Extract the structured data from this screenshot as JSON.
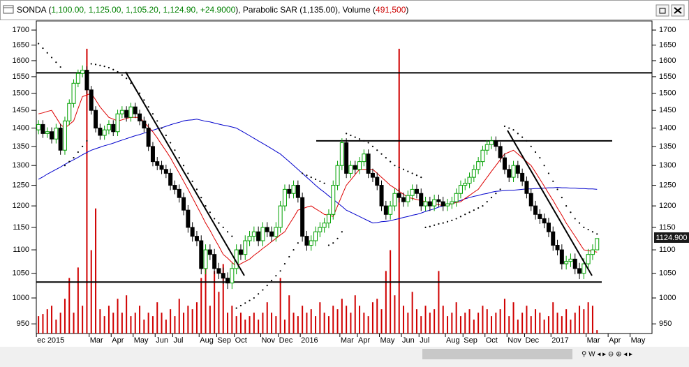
{
  "ui": {
    "header": [
      "SONDA (",
      "1,100.00, 1,125.00, 1,105.20, 1,124.90, +24.9000",
      "), Parabolic SAR (",
      "1,135.00",
      "), Volume (",
      "491,500",
      ")"
    ],
    "price_tag": "1124.900"
  },
  "chart_data": {
    "type": "candlestick",
    "log_scale": true,
    "up_color": "#00a000",
    "down_color": "#000000",
    "ylim": [
      932,
      1731
    ],
    "yticks": [
      950,
      1000,
      1050,
      1100,
      1150,
      1200,
      1250,
      1300,
      1350,
      1400,
      1450,
      1500,
      1550,
      1600,
      1650,
      1700
    ],
    "y2lim": [
      0,
      45000000
    ],
    "levels": [
      1562,
      1365,
      1032
    ],
    "categories": [
      "ec 2015",
      null,
      null,
      null,
      null,
      null,
      null,
      null,
      null,
      null,
      null,
      null,
      "Mar",
      null,
      null,
      null,
      null,
      "Apr",
      null,
      null,
      null,
      null,
      "May",
      null,
      null,
      null,
      null,
      "Jun",
      null,
      null,
      null,
      "Jul",
      null,
      null,
      null,
      null,
      null,
      "Aug",
      null,
      null,
      null,
      "Sep",
      null,
      null,
      null,
      "Oct",
      null,
      null,
      null,
      null,
      null,
      "Nov",
      null,
      null,
      null,
      "Dec",
      null,
      null,
      null,
      null,
      "2016",
      null,
      null,
      null,
      null,
      null,
      null,
      null,
      null,
      "Mar",
      null,
      null,
      null,
      "Apr",
      null,
      null,
      null,
      null,
      "May",
      null,
      null,
      null,
      null,
      "Jun",
      null,
      null,
      null,
      "Jul",
      null,
      null,
      null,
      null,
      null,
      "Aug",
      null,
      null,
      null,
      "Sep",
      null,
      null,
      null,
      null,
      "Oct",
      null,
      null,
      null,
      null,
      "Nov",
      null,
      null,
      null,
      "Dec",
      null,
      null,
      null,
      null,
      null,
      "2017",
      null,
      null,
      null,
      null,
      null,
      null,
      null,
      "Mar",
      null,
      null,
      null,
      null,
      "Apr",
      null,
      null,
      null,
      null,
      "May",
      null,
      null,
      null,
      null
    ],
    "open": [
      1395,
      1410,
      1385,
      1390,
      1370,
      1400,
      1340,
      1420,
      1470,
      1530,
      1560,
      1570,
      1510,
      1450,
      1400,
      1380,
      1395,
      1410,
      1390,
      1440,
      1450,
      1430,
      1460,
      1440,
      1420,
      1400,
      1350,
      1310,
      1300,
      1290,
      1280,
      1250,
      1240,
      1220,
      1190,
      1150,
      1130,
      1120,
      1060,
      1100,
      1090,
      1060,
      1050,
      1040,
      1030,
      1060,
      1100,
      1090,
      1120,
      1130,
      1140,
      1120,
      1150,
      1140,
      1130,
      1150,
      1200,
      1240,
      1230,
      1250,
      1220,
      1130,
      1110,
      1120,
      1140,
      1150,
      1160,
      1180,
      1250,
      1300,
      1360,
      1280,
      1300,
      1290,
      1310,
      1330,
      1280,
      1270,
      1250,
      1200,
      1180,
      1200,
      1230,
      1220,
      1210,
      1225,
      1240,
      1230,
      1200,
      1210,
      1200,
      1215,
      1210,
      1200,
      1205,
      1210,
      1230,
      1250,
      1255,
      1270,
      1290,
      1310,
      1340,
      1355,
      1365,
      1350,
      1320,
      1290,
      1270,
      1300,
      1280,
      1260,
      1230,
      1200,
      1180,
      1170,
      1160,
      1140,
      1110,
      1100,
      1070,
      1075,
      1080,
      1060,
      1050,
      1070,
      1090,
      1100,
      null,
      null,
      null,
      null,
      null,
      null,
      null,
      null,
      null,
      null,
      null,
      null
    ],
    "high": [
      1422,
      1422,
      1402,
      1402,
      1412,
      1412,
      1432,
      1482,
      1542,
      1572,
      1585,
      1582,
      1522,
      1462,
      1412,
      1407,
      1422,
      1422,
      1452,
      1462,
      1462,
      1472,
      1472,
      1452,
      1432,
      1412,
      1362,
      1322,
      1312,
      1302,
      1292,
      1262,
      1252,
      1232,
      1202,
      1162,
      1142,
      1132,
      1112,
      1112,
      1102,
      1072,
      1062,
      1052,
      1072,
      1112,
      1112,
      1132,
      1142,
      1152,
      1152,
      1162,
      1162,
      1152,
      1162,
      1212,
      1252,
      1252,
      1262,
      1262,
      1232,
      1142,
      1132,
      1152,
      1162,
      1172,
      1192,
      1262,
      1312,
      1372,
      1372,
      1312,
      1312,
      1322,
      1342,
      1342,
      1292,
      1282,
      1262,
      1212,
      1212,
      1242,
      1242,
      1232,
      1237,
      1252,
      1252,
      1242,
      1222,
      1222,
      1227,
      1227,
      1222,
      1217,
      1222,
      1242,
      1262,
      1267,
      1282,
      1302,
      1322,
      1352,
      1367,
      1377,
      1377,
      1362,
      1332,
      1302,
      1312,
      1312,
      1292,
      1272,
      1242,
      1212,
      1192,
      1182,
      1172,
      1152,
      1122,
      1112,
      1087,
      1092,
      1092,
      1072,
      1082,
      1102,
      1112,
      1125,
      null,
      null,
      null,
      null,
      null,
      null,
      null,
      null,
      null,
      null,
      null,
      null
    ],
    "low": [
      1383,
      1373,
      1373,
      1358,
      1358,
      1328,
      1328,
      1408,
      1458,
      1518,
      1548,
      1498,
      1438,
      1388,
      1368,
      1368,
      1383,
      1378,
      1378,
      1428,
      1418,
      1418,
      1428,
      1408,
      1388,
      1338,
      1298,
      1288,
      1278,
      1268,
      1238,
      1228,
      1208,
      1178,
      1138,
      1118,
      1108,
      1048,
      1048,
      1078,
      1048,
      1038,
      1028,
      1018,
      1018,
      1048,
      1078,
      1078,
      1108,
      1118,
      1108,
      1108,
      1128,
      1118,
      1118,
      1138,
      1188,
      1218,
      1218,
      1208,
      1118,
      1098,
      1098,
      1108,
      1128,
      1138,
      1148,
      1168,
      1238,
      1288,
      1268,
      1268,
      1278,
      1278,
      1298,
      1268,
      1258,
      1238,
      1188,
      1168,
      1168,
      1188,
      1208,
      1198,
      1198,
      1213,
      1218,
      1188,
      1188,
      1188,
      1188,
      1198,
      1188,
      1188,
      1193,
      1198,
      1218,
      1238,
      1243,
      1258,
      1278,
      1298,
      1328,
      1343,
      1338,
      1308,
      1278,
      1258,
      1258,
      1268,
      1248,
      1218,
      1188,
      1168,
      1158,
      1148,
      1128,
      1098,
      1088,
      1058,
      1058,
      1063,
      1048,
      1038,
      1038,
      1058,
      1078,
      1105.2,
      null,
      null,
      null,
      null,
      null,
      null,
      null,
      null,
      null,
      null,
      null,
      null
    ],
    "close": [
      1410,
      1385,
      1390,
      1370,
      1400,
      1340,
      1420,
      1470,
      1530,
      1560,
      1570,
      1510,
      1450,
      1400,
      1380,
      1395,
      1410,
      1390,
      1440,
      1450,
      1430,
      1460,
      1440,
      1420,
      1400,
      1350,
      1310,
      1300,
      1290,
      1280,
      1250,
      1240,
      1220,
      1190,
      1150,
      1130,
      1120,
      1060,
      1100,
      1090,
      1060,
      1050,
      1040,
      1030,
      1060,
      1100,
      1090,
      1120,
      1130,
      1140,
      1120,
      1150,
      1140,
      1130,
      1150,
      1200,
      1240,
      1230,
      1250,
      1220,
      1130,
      1110,
      1120,
      1140,
      1150,
      1160,
      1180,
      1250,
      1300,
      1360,
      1280,
      1300,
      1290,
      1310,
      1330,
      1280,
      1270,
      1250,
      1200,
      1180,
      1200,
      1230,
      1220,
      1210,
      1225,
      1240,
      1230,
      1200,
      1210,
      1200,
      1215,
      1210,
      1200,
      1205,
      1210,
      1230,
      1250,
      1255,
      1270,
      1290,
      1310,
      1340,
      1355,
      1365,
      1350,
      1320,
      1290,
      1270,
      1300,
      1280,
      1260,
      1230,
      1200,
      1180,
      1170,
      1160,
      1140,
      1110,
      1100,
      1070,
      1075,
      1080,
      1060,
      1050,
      1070,
      1090,
      1100,
      1124.9,
      null,
      null,
      null,
      null,
      null,
      null,
      null,
      null,
      null,
      null,
      null,
      null
    ],
    "volume": {
      "color": "#d00000",
      "values": [
        2500000,
        2800000,
        3500000,
        4000000,
        2000000,
        3000000,
        5000000,
        8000000,
        3000000,
        9500000,
        4000000,
        41000000,
        12000000,
        18000000,
        3500000,
        2500000,
        4000000,
        3000000,
        5000000,
        3000000,
        5500000,
        2500000,
        3000000,
        4000000,
        2000000,
        3000000,
        2500000,
        4500000,
        3000000,
        2000000,
        3500000,
        2500000,
        5000000,
        3000000,
        4000000,
        3500000,
        4500000,
        8000000,
        10000000,
        4000000,
        9000000,
        6000000,
        10000000,
        3000000,
        4000000,
        2500000,
        3000000,
        2000000,
        2500000,
        3000000,
        2000000,
        3000000,
        4500000,
        3000000,
        2500000,
        8000000,
        2000000,
        5500000,
        3000000,
        2500000,
        4000000,
        3000000,
        3500000,
        2500000,
        4500000,
        3000000,
        2500000,
        4000000,
        3500000,
        5000000,
        4000000,
        3000000,
        5500000,
        4000000,
        3000000,
        2500000,
        4500000,
        5000000,
        3500000,
        9000000,
        12000000,
        5500000,
        41000000,
        4000000,
        3000000,
        6000000,
        3500000,
        2500000,
        4000000,
        3000000,
        3500000,
        9000000,
        4000000,
        2500000,
        3000000,
        4500000,
        2500000,
        3000000,
        3500000,
        2000000,
        3000000,
        4000000,
        3500000,
        2500000,
        3000000,
        3500000,
        5000000,
        2500000,
        4500000,
        2000000,
        3000000,
        4000000,
        2500000,
        3500000,
        3000000,
        2000000,
        2500000,
        4500000,
        3000000,
        2500000,
        3500000,
        2000000,
        3000000,
        4000000,
        3500000,
        4500000,
        4000000,
        491500,
        null,
        null,
        null,
        null,
        null,
        null,
        null,
        null,
        null,
        null,
        null,
        null
      ]
    },
    "lines": [
      {
        "color": "#0000cc",
        "values": [
          1265,
          1271,
          1278,
          1284,
          1290,
          1296,
          1303,
          1309,
          1315,
          1321,
          1328,
          1334,
          1340,
          1344,
          1348,
          1352,
          1355,
          1359,
          1363,
          1367,
          1371,
          1375,
          1379,
          1382,
          1386,
          1390,
          1394,
          1398,
          1401,
          1405,
          1409,
          1413,
          1416,
          1420,
          1422,
          1423,
          1425,
          1422,
          1419,
          1417,
          1414,
          1411,
          1408,
          1406,
          1403,
          1400,
          1393,
          1386,
          1379,
          1372,
          1365,
          1358,
          1351,
          1344,
          1337,
          1330,
          1320,
          1310,
          1300,
          1290,
          1280,
          1270,
          1260,
          1250,
          1241,
          1233,
          1224,
          1216,
          1207,
          1199,
          1190,
          1185,
          1180,
          1175,
          1170,
          1165,
          1160,
          1161,
          1163,
          1164,
          1165,
          1168,
          1170,
          1173,
          1175,
          1178,
          1180,
          1183,
          1187,
          1190,
          1193,
          1197,
          1200,
          1203,
          1207,
          1210,
          1213,
          1217,
          1220,
          1223,
          1225,
          1228,
          1230,
          1233,
          1235,
          1236,
          1237,
          1238,
          1238,
          1239,
          1240,
          1241,
          1241,
          1242,
          1242,
          1243,
          1244,
          1244,
          1245,
          1244,
          1244,
          1243,
          1243,
          1242,
          1242,
          1241,
          1241,
          1240,
          null,
          null,
          null,
          null,
          null,
          null,
          null,
          null,
          null,
          null,
          null,
          null
        ]
      },
      {
        "color": "#dd0000",
        "values": [
          1440,
          1443,
          1447,
          1450,
          1430,
          1410,
          1400,
          1410,
          1420,
          1455,
          1490,
          1495,
          1500,
          1480,
          1460,
          1445,
          1430,
          1425,
          1420,
          1423,
          1427,
          1430,
          1430,
          1430,
          1417,
          1403,
          1390,
          1373,
          1355,
          1338,
          1320,
          1300,
          1280,
          1260,
          1240,
          1220,
          1200,
          1180,
          1160,
          1143,
          1125,
          1108,
          1090,
          1082,
          1073,
          1065,
          1070,
          1075,
          1080,
          1088,
          1095,
          1103,
          1110,
          1118,
          1125,
          1133,
          1140,
          1157,
          1173,
          1190,
          1193,
          1197,
          1200,
          1193,
          1187,
          1180,
          1178,
          1175,
          1200,
          1225,
          1250,
          1263,
          1277,
          1290,
          1290,
          1290,
          1290,
          1280,
          1270,
          1260,
          1250,
          1243,
          1235,
          1228,
          1220,
          1218,
          1215,
          1213,
          1210,
          1208,
          1205,
          1203,
          1200,
          1203,
          1205,
          1208,
          1210,
          1218,
          1225,
          1233,
          1240,
          1255,
          1270,
          1285,
          1300,
          1315,
          1330,
          1335,
          1340,
          1330,
          1320,
          1310,
          1300,
          1283,
          1265,
          1248,
          1230,
          1213,
          1195,
          1178,
          1160,
          1145,
          1130,
          1115,
          1100,
          1098,
          1097,
          1095,
          null,
          null,
          null,
          null,
          null,
          null,
          null,
          null,
          null,
          null,
          null,
          null
        ]
      }
    ],
    "sar": {
      "color": "#000000",
      "values": [
        1655,
        1640,
        1625,
        1610,
        1595,
        1580,
        1300,
        1310,
        1320,
        1335,
        1350,
        1365,
        1590,
        1588,
        1585,
        1582,
        1578,
        1572,
        1565,
        1555,
        1545,
        1530,
        1515,
        1500,
        1480,
        1460,
        1440,
        1420,
        1400,
        1380,
        1360,
        1340,
        1320,
        1300,
        1280,
        1260,
        1240,
        1220,
        1200,
        1185,
        1170,
        1160,
        1150,
        1140,
        1130,
        980,
        985,
        990,
        995,
        1000,
        1008,
        1016,
        1025,
        1035,
        1045,
        1055,
        1070,
        1085,
        1100,
        1115,
        1280,
        1275,
        1270,
        1265,
        1260,
        1255,
        1110,
        1115,
        1125,
        1140,
        1385,
        1380,
        1375,
        1370,
        1365,
        1360,
        1350,
        1340,
        1330,
        1320,
        1310,
        1300,
        1295,
        1290,
        1285,
        1280,
        1275,
        1270,
        1150,
        1152,
        1155,
        1158,
        1160,
        1163,
        1166,
        1170,
        1175,
        1180,
        1185,
        1190,
        1195,
        1200,
        1210,
        1220,
        1230,
        1240,
        1405,
        1400,
        1395,
        1385,
        1375,
        1365,
        1350,
        1335,
        1320,
        1300,
        1280,
        1260,
        1240,
        1220,
        1200,
        1185,
        1170,
        1160,
        1150,
        1145,
        1140,
        1135,
        null,
        null,
        null,
        null,
        null,
        null,
        null,
        null,
        null,
        null,
        null,
        null
      ]
    }
  }
}
